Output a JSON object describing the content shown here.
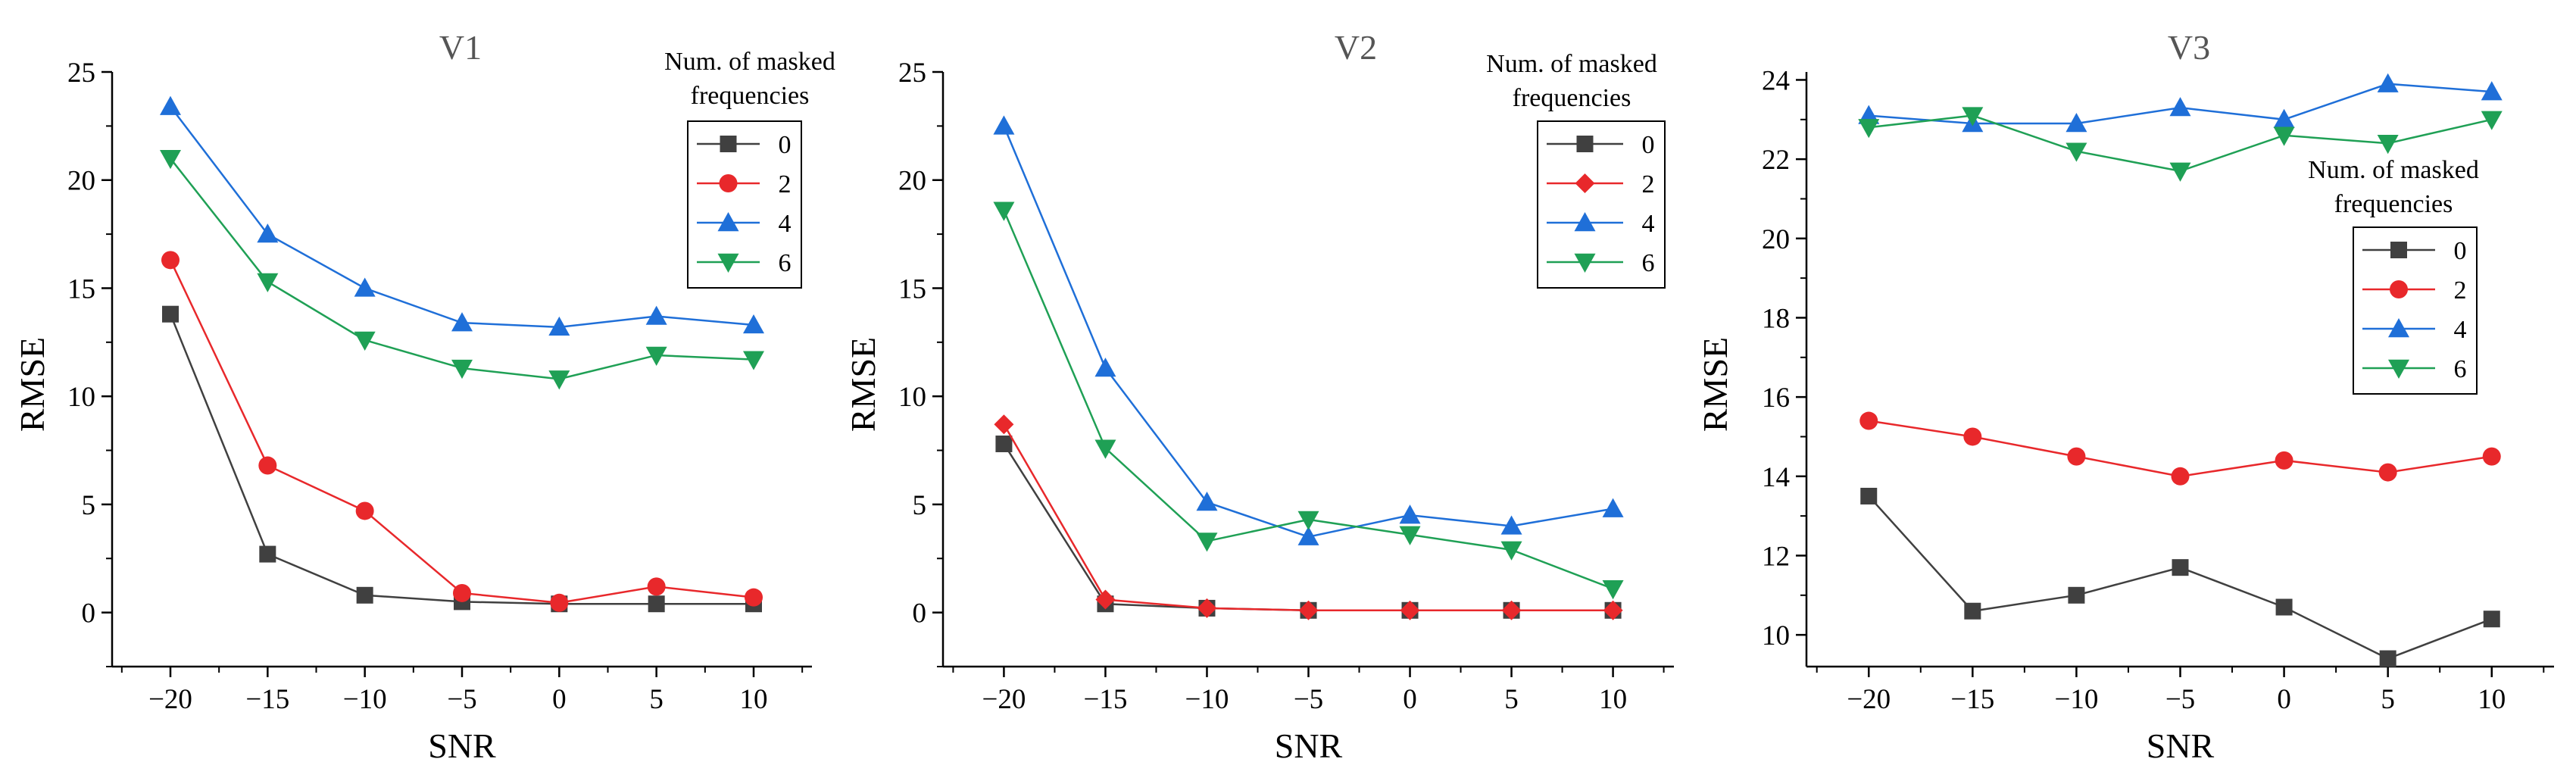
{
  "chart_data": [
    {
      "type": "line",
      "title": "V1",
      "xlabel": "SNR",
      "ylabel": "RMSE",
      "x": [
        -20,
        -15,
        -10,
        -5,
        0,
        5,
        10
      ],
      "xticks": [
        "-20",
        "-15",
        "-10",
        "-5",
        "0",
        "5",
        "10"
      ],
      "ylim": [
        -2.5,
        25
      ],
      "yticks": [
        "0",
        "5",
        "10",
        "15",
        "20",
        "25"
      ],
      "ytick_values": [
        0,
        5,
        10,
        15,
        20,
        25
      ],
      "legend_title": [
        "Num. of masked",
        "frequencies"
      ],
      "legend_position": "top-right",
      "series": [
        {
          "name": "0",
          "color": "#404040",
          "marker": "square",
          "values": [
            13.8,
            2.7,
            0.8,
            0.5,
            0.4,
            0.4,
            0.4
          ]
        },
        {
          "name": "2",
          "color": "#e8282b",
          "marker": "circle",
          "values": [
            16.3,
            6.8,
            4.7,
            0.9,
            0.45,
            1.2,
            0.7
          ]
        },
        {
          "name": "4",
          "color": "#1f6fd8",
          "marker": "triangle-up",
          "values": [
            23.4,
            17.5,
            15.0,
            13.4,
            13.2,
            13.7,
            13.3
          ]
        },
        {
          "name": "6",
          "color": "#1fa055",
          "marker": "triangle-down",
          "values": [
            21.0,
            15.3,
            12.6,
            11.3,
            10.8,
            11.9,
            11.7
          ]
        }
      ]
    },
    {
      "type": "line",
      "title": "V2",
      "xlabel": "SNR",
      "ylabel": "RMSE",
      "x": [
        -20,
        -15,
        -10,
        -5,
        0,
        5,
        10
      ],
      "xticks": [
        "-20",
        "-15",
        "-10",
        "-5",
        "0",
        "5",
        "10"
      ],
      "ylim": [
        -2.5,
        25
      ],
      "yticks": [
        "0",
        "5",
        "10",
        "15",
        "20",
        "25"
      ],
      "ytick_values": [
        0,
        5,
        10,
        15,
        20,
        25
      ],
      "legend_title": [
        "Num. of masked",
        "frequencies"
      ],
      "legend_position": "top-right",
      "series": [
        {
          "name": "0",
          "color": "#404040",
          "marker": "square",
          "values": [
            7.8,
            0.4,
            0.2,
            0.1,
            0.1,
            0.1,
            0.1
          ]
        },
        {
          "name": "2",
          "color": "#e8282b",
          "marker": "diamond",
          "values": [
            8.7,
            0.6,
            0.2,
            0.1,
            0.1,
            0.1,
            0.1
          ]
        },
        {
          "name": "4",
          "color": "#1f6fd8",
          "marker": "triangle-up",
          "values": [
            22.5,
            11.3,
            5.1,
            3.5,
            4.5,
            4.0,
            4.8
          ]
        },
        {
          "name": "6",
          "color": "#1fa055",
          "marker": "triangle-down",
          "values": [
            18.6,
            7.6,
            3.3,
            4.3,
            3.6,
            2.9,
            1.1
          ]
        }
      ]
    },
    {
      "type": "line",
      "title": "V3",
      "xlabel": "SNR",
      "ylabel": "RMSE",
      "x": [
        -20,
        -15,
        -10,
        -5,
        0,
        5,
        10
      ],
      "xticks": [
        "-20",
        "-15",
        "-10",
        "-5",
        "0",
        "5",
        "10"
      ],
      "ylim": [
        9.2,
        24.2
      ],
      "yticks": [
        "10",
        "12",
        "14",
        "16",
        "18",
        "20",
        "22",
        "24"
      ],
      "ytick_values": [
        10,
        12,
        14,
        16,
        18,
        20,
        22,
        24
      ],
      "legend_title": [
        "Num. of masked",
        "frequencies"
      ],
      "legend_position": "center-right",
      "series": [
        {
          "name": "0",
          "color": "#404040",
          "marker": "square",
          "values": [
            13.5,
            10.6,
            11.0,
            11.7,
            10.7,
            9.4,
            10.4
          ]
        },
        {
          "name": "2",
          "color": "#e8282b",
          "marker": "circle",
          "values": [
            15.4,
            15.0,
            14.5,
            14.0,
            14.4,
            14.1,
            14.5
          ]
        },
        {
          "name": "4",
          "color": "#1f6fd8",
          "marker": "triangle-up",
          "values": [
            23.1,
            22.9,
            22.9,
            23.3,
            23.0,
            23.9,
            23.7
          ]
        },
        {
          "name": "6",
          "color": "#1fa055",
          "marker": "triangle-down",
          "values": [
            22.8,
            23.1,
            22.2,
            21.7,
            22.6,
            22.4,
            23.0
          ]
        }
      ]
    }
  ]
}
